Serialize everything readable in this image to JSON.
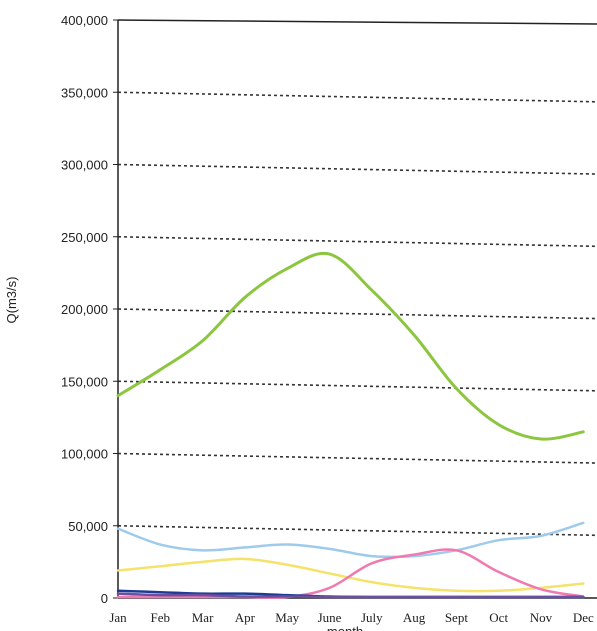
{
  "chart_data": {
    "type": "line",
    "title": "",
    "xlabel": "month",
    "ylabel": "Q(m3/s)",
    "ylim": [
      0,
      400000
    ],
    "grid": "horizontal dashed",
    "legend": "none",
    "categories": [
      "Jan",
      "Feb",
      "Mar",
      "Apr",
      "May",
      "June",
      "July",
      "Aug",
      "Sept",
      "Oct",
      "Nov",
      "Dec"
    ],
    "y_ticks": [
      "0",
      "50,000",
      "100,000",
      "150,000",
      "200,000",
      "250,000",
      "300,000",
      "350,000",
      "400,000"
    ],
    "series": [
      {
        "color": "#8cc63f",
        "values": [
          140000,
          158000,
          178000,
          208000,
          228000,
          238000,
          213000,
          182000,
          145000,
          120000,
          110000,
          115000
        ]
      },
      {
        "color": "#9ecbec",
        "values": [
          48000,
          37000,
          33000,
          35000,
          37000,
          34000,
          29000,
          29000,
          33000,
          40000,
          43000,
          52000
        ]
      },
      {
        "color": "#f4e26a",
        "values": [
          19000,
          22000,
          25000,
          27000,
          23000,
          17000,
          11000,
          7000,
          5000,
          5000,
          7000,
          10000
        ]
      },
      {
        "color": "#f07ab0",
        "values": [
          0,
          0,
          0,
          0,
          0,
          7000,
          24000,
          30000,
          33000,
          18000,
          6000,
          1000
        ]
      },
      {
        "color": "#1f3a93",
        "values": [
          5000,
          4000,
          3000,
          3000,
          2000,
          1000,
          0,
          0,
          0,
          0,
          0,
          0
        ]
      },
      {
        "color": "#6b4fa0",
        "values": [
          3000,
          2000,
          2000,
          1000,
          1000,
          0,
          0,
          0,
          0,
          0,
          0,
          0
        ]
      }
    ]
  }
}
